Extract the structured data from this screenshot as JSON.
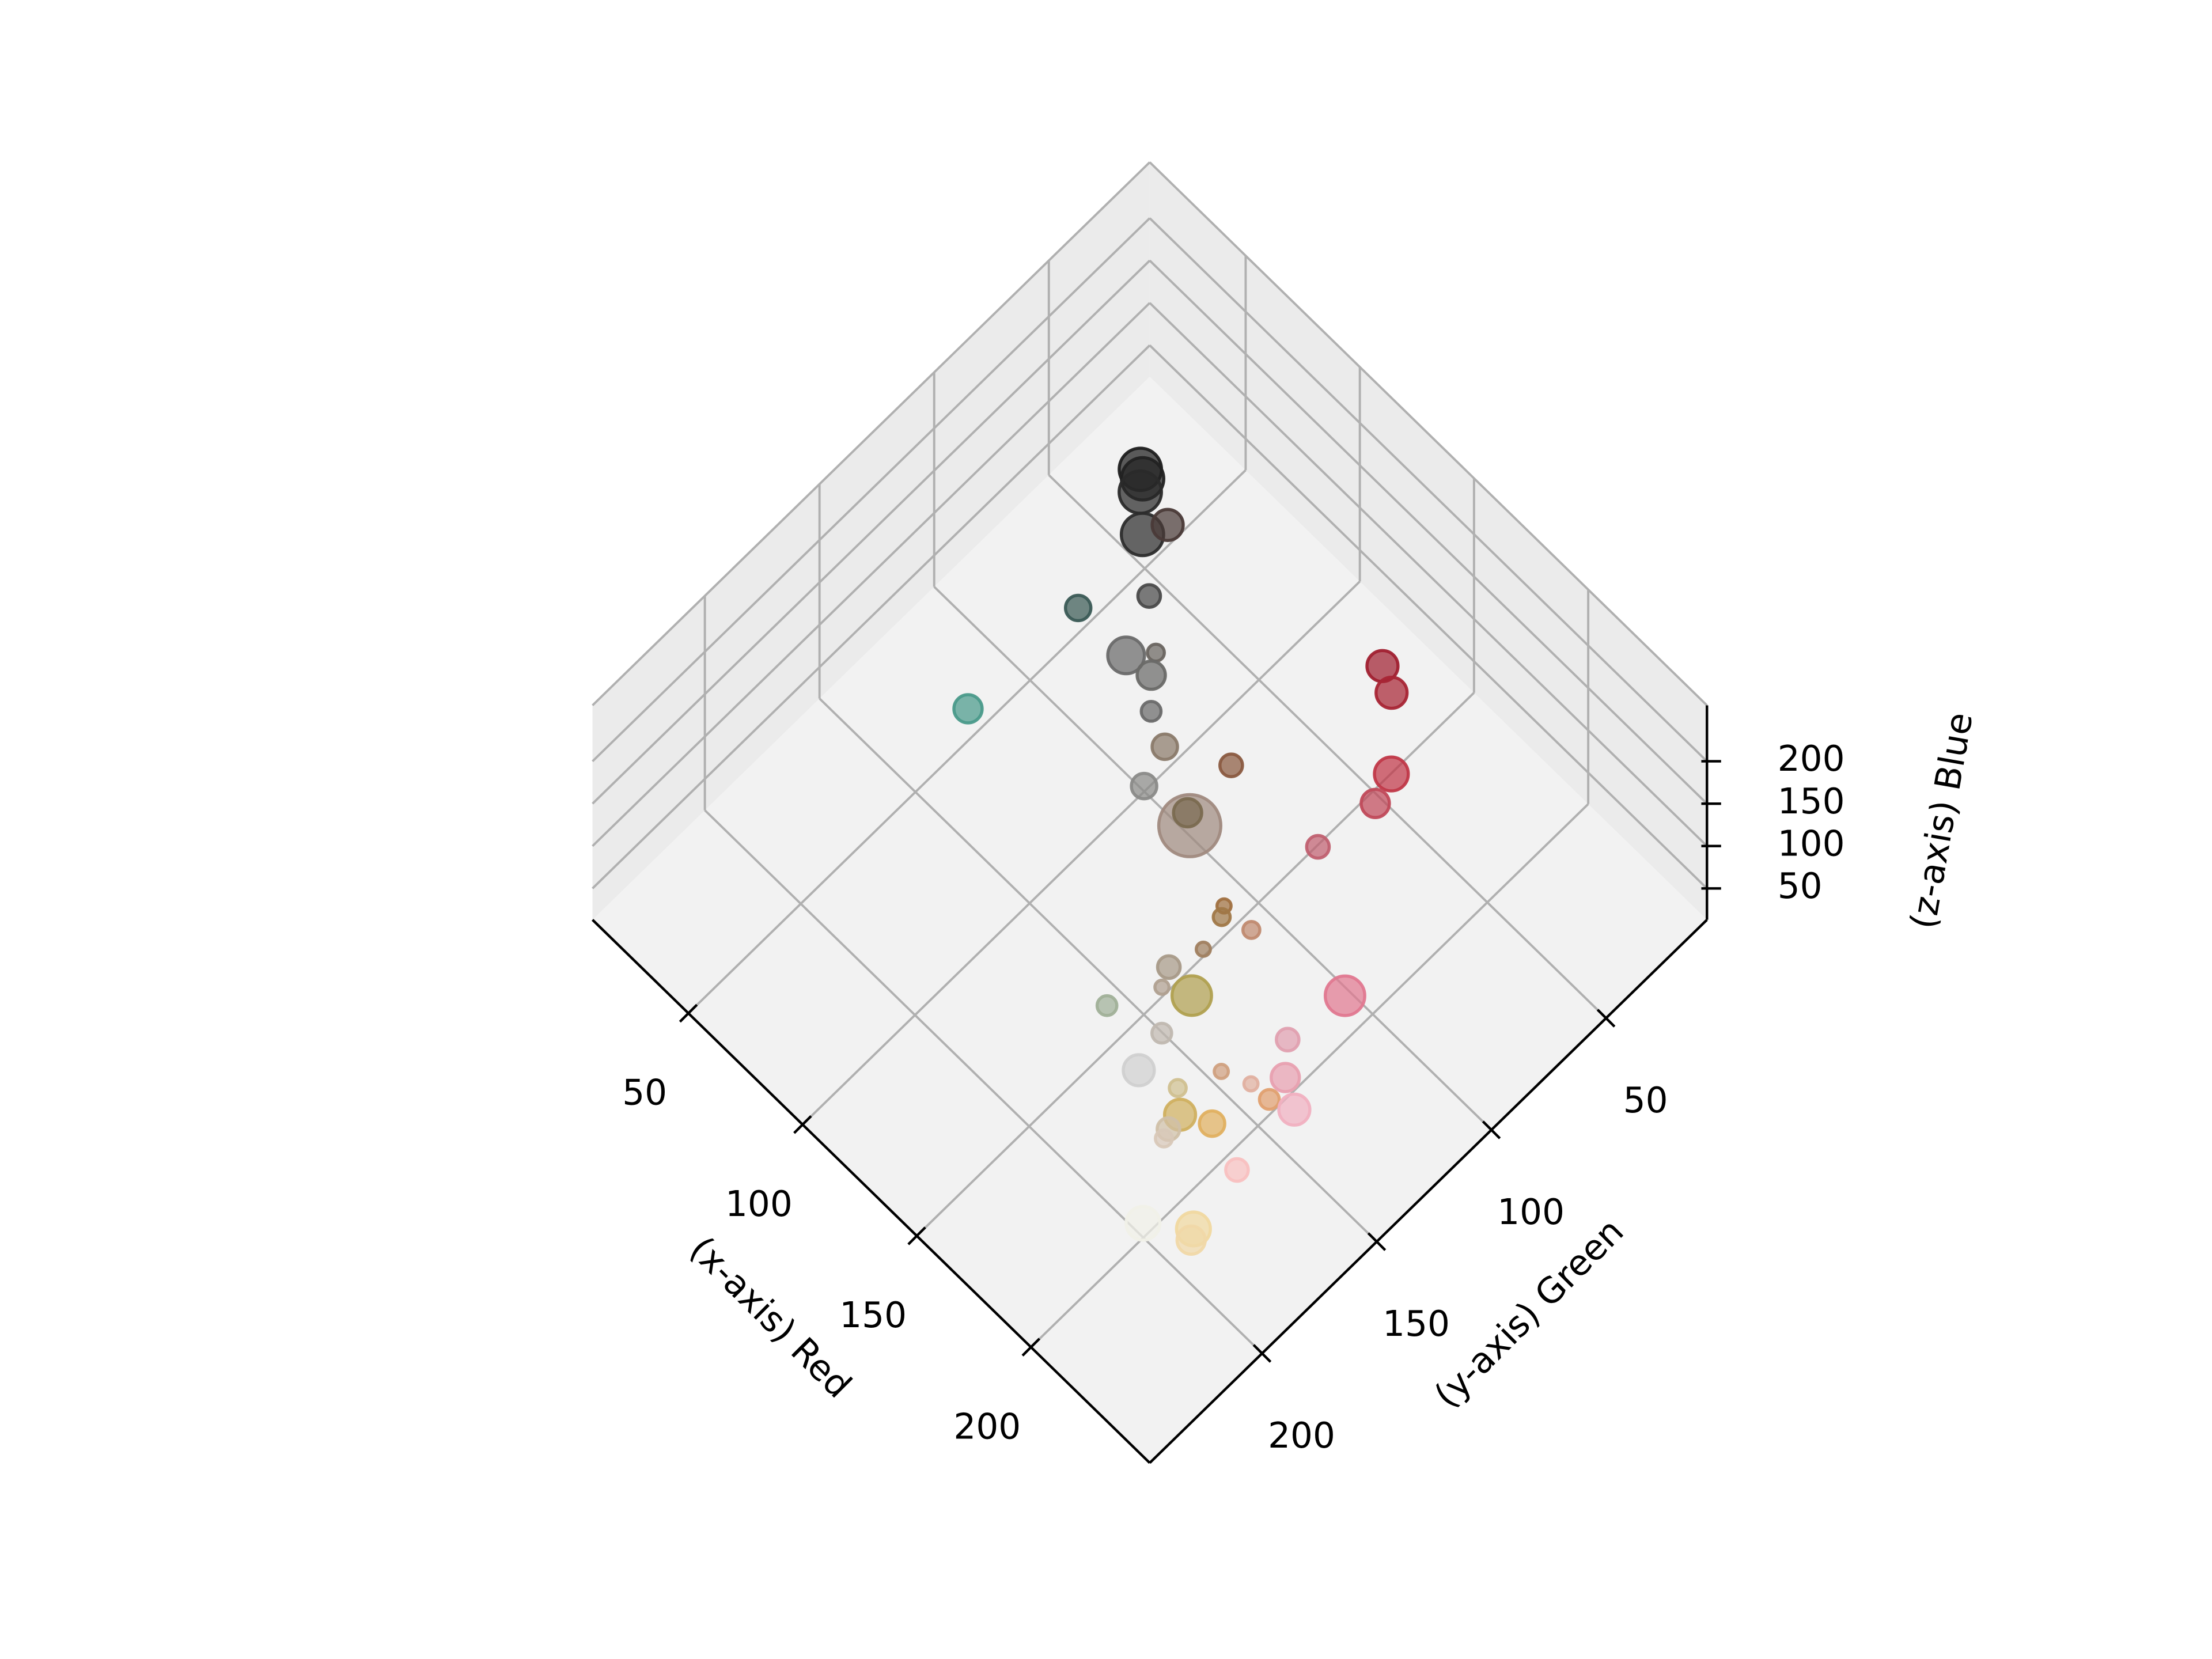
{
  "chart_data": {
    "type": "scatter3d",
    "x_label": "(x-axis) Red",
    "y_label": "(y-axis) Green",
    "z_label": "(z-axis) Blue",
    "xlim": [
      8,
      252
    ],
    "ylim": [
      6,
      249
    ],
    "zlim": [
      13,
      266
    ],
    "xticks": [
      50,
      100,
      150,
      200
    ],
    "yticks": [
      50,
      100,
      150,
      200
    ],
    "zticks": [
      50,
      100,
      150,
      200
    ],
    "grid": true,
    "series": [
      {
        "x": [
          30,
          33,
          37,
          47,
          50,
          58,
          68,
          82,
          86,
          91,
          101,
          67,
          111,
          124,
          121,
          138,
          127,
          131,
          139,
          161,
          166,
          167,
          154,
          156,
          173,
          163,
          169,
          172,
          169,
          166,
          214,
          188,
          217,
          197,
          202,
          200,
          225,
          217,
          215,
          238,
          197,
          206,
          211,
          214,
          239,
          238,
          237,
          239
        ],
        "y": [
          32,
          34,
          39,
          48,
          40,
          87,
          66,
          90,
          81,
          88,
          98,
          144,
          102,
          86,
          121,
          118,
          108,
          27,
          31,
          53,
          65,
          91,
          119,
          122,
          126,
          137,
          158,
          164,
          148,
          182,
          126,
          180,
          154,
          199,
          168,
          185,
          163,
          170,
          160,
          172,
          181,
          176,
          200,
          205,
          198,
          238,
          215,
          218
        ],
        "z": [
          30,
          32,
          40,
          40,
          38,
          85,
          70,
          100,
          90,
          95,
          105,
          140,
          100,
          70,
          130,
          120,
          80,
          50,
          50,
          70,
          80,
          100,
          70,
          70,
          110,
          90,
          140,
          140,
          80,
          150,
          140,
          170,
          170,
          200,
          130,
          150,
          170,
          160,
          110,
          190,
          100,
          100,
          170,
          180,
          190,
          230,
          160,
          160
        ],
        "sizes": [
          225,
          225,
          225,
          225,
          121,
          81,
          64,
          169,
          36,
          100,
          49,
          100,
          81,
          64,
          81,
          484,
          100,
          121,
          121,
          144,
          100,
          64,
          25,
          36,
          36,
          25,
          64,
          25,
          196,
          49,
          196,
          49,
          64,
          121,
          25,
          36,
          100,
          25,
          49,
          121,
          121,
          81,
          64,
          36,
          64,
          144,
          144,
          100
        ],
        "colors": [
          "#1e1e1e",
          "#222222",
          "#2a2a2a",
          "#2c2c2c",
          "#4a3a38",
          "#3a5a55",
          "#4a4a4a",
          "#6a6a6a",
          "#6a6560",
          "#6a6a68",
          "#6a6a6a",
          "#4a9a8a",
          "#8a7a6a",
          "#8a5a40",
          "#8a8a88",
          "#a08a80",
          "#7a6a50",
          "#a02030",
          "#a82535",
          "#c03848",
          "#c04a5a",
          "#c06070",
          "#a07040",
          "#a07848",
          "#c08a70",
          "#a08060",
          "#a89a88",
          "#b0a090",
          "#b0a050",
          "#a0b098",
          "#e07890",
          "#c0b8b0",
          "#e0a0b0",
          "#d0d0d0",
          "#d0a080",
          "#d0c090",
          "#e8a0b0",
          "#e0b0a0",
          "#e0a070",
          "#f0b0c0",
          "#d0b060",
          "#e0b060",
          "#d0c0a8",
          "#d8c8b8",
          "#f8c0c0",
          "#f0f0e8",
          "#f0d8a0",
          "#f0d8a8"
        ]
      }
    ]
  }
}
